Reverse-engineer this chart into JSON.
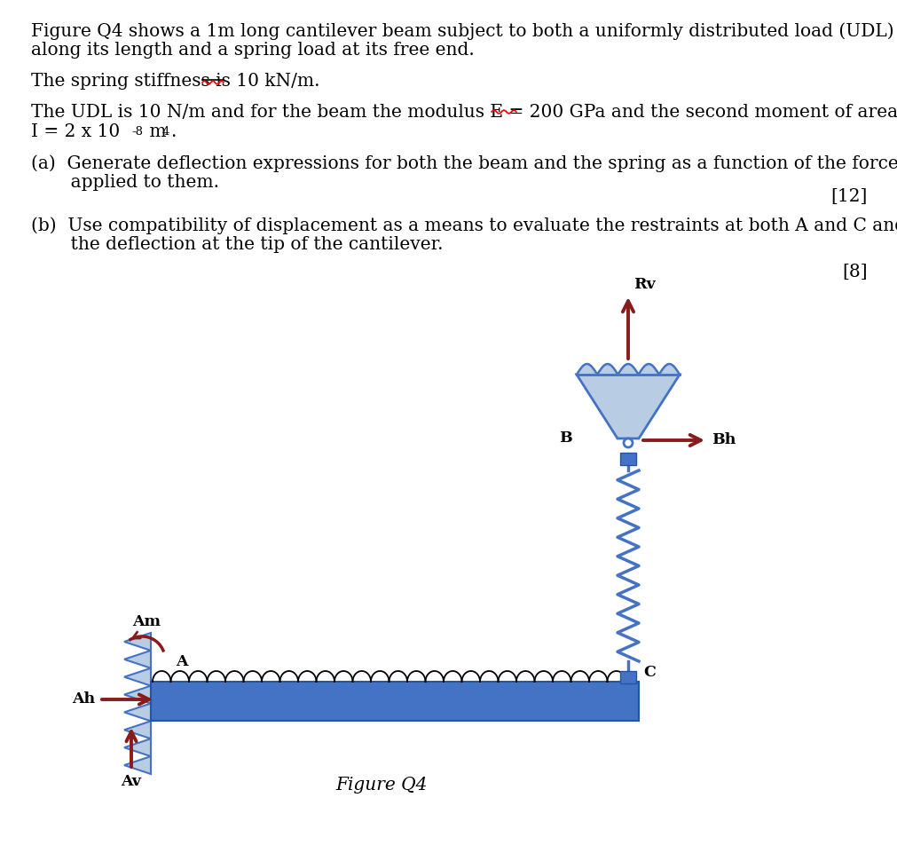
{
  "background_color": "#ffffff",
  "text_color": "#000000",
  "dark_red": "#8B1A1A",
  "beam_color": "#4472C4",
  "beam_light": "#B8CCE4",
  "spring_color": "#4472C4",
  "title_text": "Figure Q4",
  "line1a": "Figure Q4 shows a 1m long cantilever beam subject to both a uniformly distributed load (UDL)",
  "line1b": "along its length and a spring load at its free end.",
  "line2": "The spring stiffness is 10 kN/m.",
  "line3a": "The UDL is 10 N/m and for the beam the modulus E = 200 GPa and the second moment of area",
  "line3b_pre": "I = 2 x 10",
  "line3b_sup": "-8",
  "line3b_m": " m",
  "line3b_4": "4",
  "line3b_dot": ".",
  "line4a1": "(a)  Generate deflection expressions for both the beam and the spring as a function of the forces",
  "line4a2": "       applied to them.",
  "mark12": "[12]",
  "line4b1": "(b)  Use compatibility of displacement as a means to evaluate the restraints at both A and C and",
  "line4b2": "       the deflection at the tip of the cantilever.",
  "mark8": "[8]",
  "font_size": 14.5,
  "font_family": "DejaVu Serif"
}
